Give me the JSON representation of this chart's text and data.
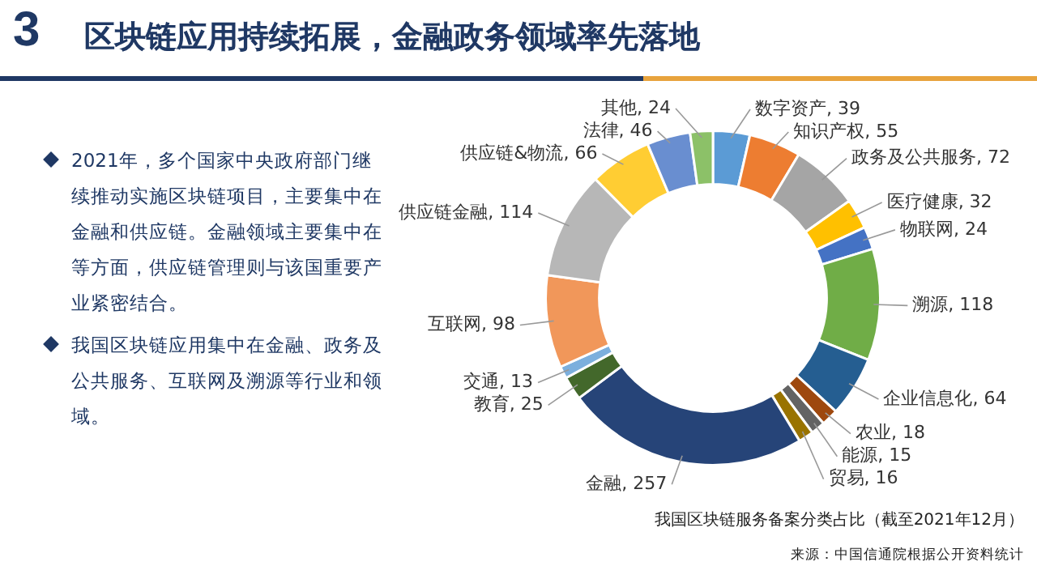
{
  "chart_data": {
    "type": "donut",
    "title": "区块链应用持续拓展，金融政务领域率先落地",
    "categories": [
      "数字资产",
      "知识产权",
      "政务及公共服务",
      "医疗健康",
      "物联网",
      "溯源",
      "企业信息化",
      "农业",
      "能源",
      "贸易",
      "金融",
      "教育",
      "交通",
      "互联网",
      "供应链金融",
      "供应链&物流",
      "法律",
      "其他"
    ],
    "values": [
      39,
      55,
      72,
      32,
      24,
      118,
      64,
      18,
      15,
      16,
      257,
      25,
      13,
      98,
      114,
      66,
      46,
      24
    ],
    "colors": [
      "#5b9bd5",
      "#ed7d31",
      "#a5a5a5",
      "#ffc000",
      "#4472c4",
      "#70ad47",
      "#255e91",
      "#9e480e",
      "#636363",
      "#997300",
      "#264478",
      "#43682b",
      "#7cafdd",
      "#f1975a",
      "#b7b7b7",
      "#ffcd33",
      "#698ed0",
      "#8cc168"
    ],
    "value_labels": [
      ", 39",
      ", 55",
      ", 72",
      ", 32",
      ", 24",
      ", 118",
      ", 64",
      ", 18",
      ", 15",
      ", 16",
      ", 257",
      ", 25",
      ", 13",
      ", 98",
      ", 114",
      ", 66",
      ", 46",
      ", 24"
    ],
    "legend": false,
    "annotations": [
      "3",
      "2021年，多个国家中央政府部门继续推动实施区块链项目，主要集中在金融和供应链。金融领域主要集中在等方面，供应链管理则与该国重要产业紧密结合。",
      "我国区块链应用集中在金融、政务及公共服务、互联网及溯源等行业和领域。",
      "我国区块链服务备案分类占比（截至2021年12月）",
      "来源：中国信通院根据公开资料统计"
    ]
  }
}
